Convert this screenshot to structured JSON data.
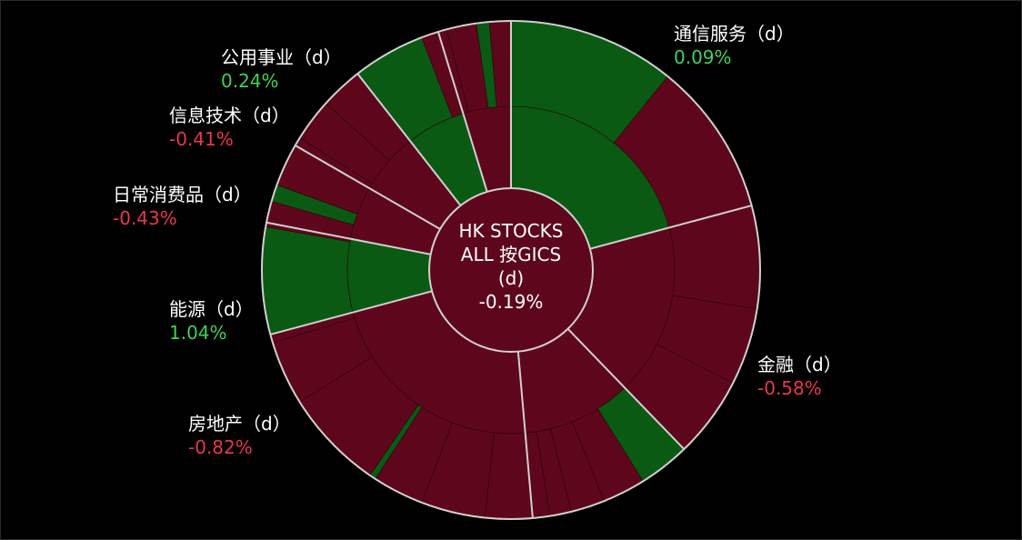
{
  "chart_data": {
    "type": "sunburst",
    "title": "HK STOCKS ALL 按GICS",
    "center": {
      "line1": "HK STOCKS",
      "line2": "ALL 按GICS",
      "line3": "(d)",
      "change": "-0.19%"
    },
    "sectors": [
      {
        "name": "通信服务（d）",
        "change": "0.09%",
        "value": 0.09
      },
      {
        "name": "金融（d）",
        "change": "-0.58%",
        "value": -0.58
      },
      {
        "name": "房地产（d）",
        "change": "-0.82%",
        "value": -0.82
      },
      {
        "name": "能源（d）",
        "change": "1.04%",
        "value": 1.04
      },
      {
        "name": "日常消费品（d）",
        "change": "-0.43%",
        "value": -0.43
      },
      {
        "name": "信息技术（d）",
        "change": "-0.41%",
        "value": -0.41
      },
      {
        "name": "公用事业（d）",
        "change": "0.24%",
        "value": 0.24
      }
    ],
    "colors": {
      "positive": "#0a5a14",
      "negative": "#5e071c",
      "positive_text": "#3fd15a",
      "negative_text": "#e8374d",
      "separator": "#d0d0d0"
    }
  }
}
